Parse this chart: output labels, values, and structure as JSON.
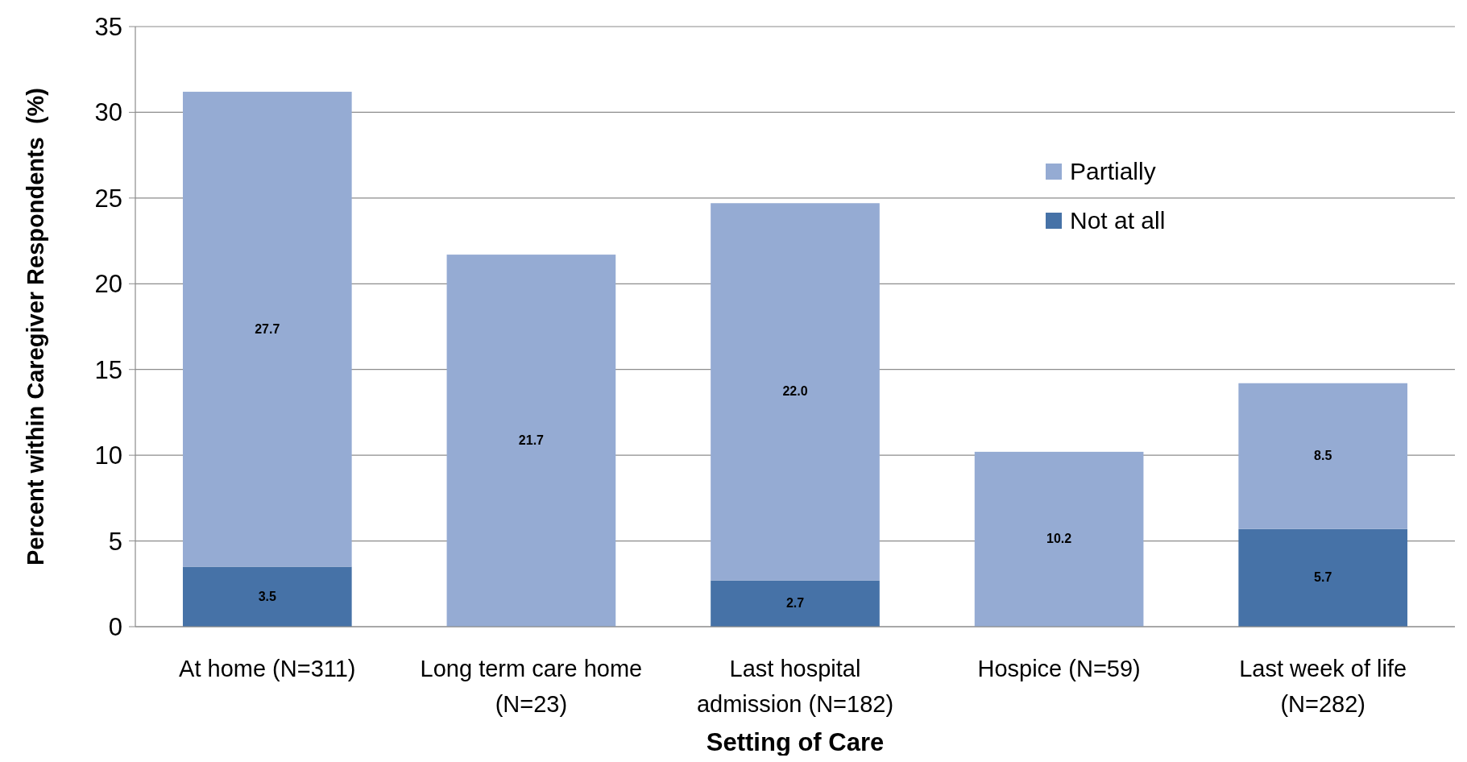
{
  "chart_data": {
    "type": "bar",
    "stacked": true,
    "xlabel": "Setting of Care",
    "ylabel": "Percent within Caregiver Respondents  (%)",
    "categories": [
      "At home (N=311)",
      "Long term care home (N=23)",
      "Last hospital admission (N=182)",
      "Hospice (N=59)",
      "Last week of life (N=282)"
    ],
    "series": [
      {
        "name": "Not at all",
        "color": "#4672a7",
        "values": [
          3.5,
          null,
          2.7,
          null,
          5.7
        ],
        "value_labels": [
          "3.5",
          null,
          "2.7",
          null,
          "5.7"
        ]
      },
      {
        "name": "Partially",
        "color": "#95abd3",
        "values": [
          27.7,
          21.7,
          22.0,
          10.2,
          8.5
        ],
        "value_labels": [
          "27.7",
          "21.7",
          "22.0",
          "10.2",
          "8.5"
        ]
      }
    ],
    "ylim": [
      0,
      35
    ],
    "yticks": [
      0,
      5,
      10,
      15,
      20,
      25,
      30,
      35
    ],
    "grid": "y",
    "legend": "right"
  }
}
